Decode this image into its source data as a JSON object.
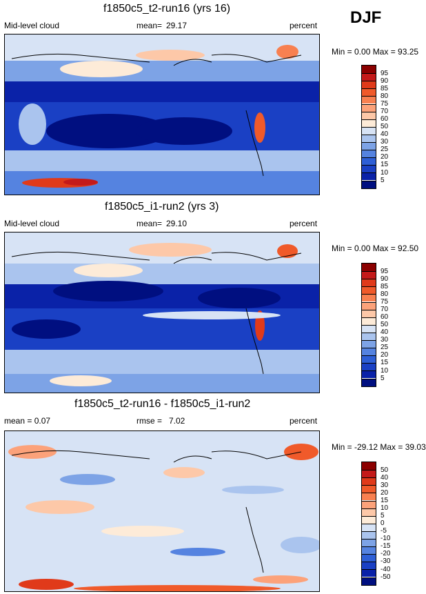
{
  "season": "DJF",
  "panels": [
    {
      "title": "f1850c5_t2-run16 (yrs 16)",
      "left_label": "Mid-level cloud",
      "mid_label": "mean=",
      "mid_value": "29.17",
      "right_label": "percent",
      "minmax": "Min =   0.00 Max =  93.25",
      "levels": [
        "95",
        "90",
        "85",
        "80",
        "75",
        "70",
        "60",
        "50",
        "40",
        "30",
        "25",
        "20",
        "15",
        "10",
        "5"
      ],
      "colors": [
        "#8b0000",
        "#c41a1a",
        "#e03a1a",
        "#f05a2a",
        "#f88050",
        "#fca27a",
        "#fdc8a8",
        "#fdebd8",
        "#d7e3f5",
        "#aac4ee",
        "#7da3e6",
        "#5583e0",
        "#2e5fd6",
        "#1a40c4",
        "#0a22a8",
        "#000f80"
      ]
    },
    {
      "title": "f1850c5_i1-run2 (yrs 3)",
      "left_label": "Mid-level cloud",
      "mid_label": "mean=",
      "mid_value": "29.10",
      "right_label": "percent",
      "minmax": "Min =   0.00 Max =  92.50",
      "levels": [
        "95",
        "90",
        "85",
        "80",
        "75",
        "70",
        "60",
        "50",
        "40",
        "30",
        "25",
        "20",
        "15",
        "10",
        "5"
      ],
      "colors": [
        "#8b0000",
        "#c41a1a",
        "#e03a1a",
        "#f05a2a",
        "#f88050",
        "#fca27a",
        "#fdc8a8",
        "#fdebd8",
        "#d7e3f5",
        "#aac4ee",
        "#7da3e6",
        "#5583e0",
        "#2e5fd6",
        "#1a40c4",
        "#0a22a8",
        "#000f80"
      ]
    },
    {
      "title": "f1850c5_t2-run16 - f1850c5_i1-run2",
      "left_label": "mean =   0.07",
      "mid_label": "rmse =",
      "mid_value": "7.02",
      "right_label": "percent",
      "minmax": "Min = -29.12 Max =  39.03",
      "levels": [
        "50",
        "40",
        "30",
        "20",
        "15",
        "10",
        "5",
        "0",
        "-5",
        "-10",
        "-15",
        "-20",
        "-30",
        "-40",
        "-50"
      ],
      "colors": [
        "#8b0000",
        "#c41a1a",
        "#e03a1a",
        "#f05a2a",
        "#f88050",
        "#fca27a",
        "#fdc8a8",
        "#fdebd8",
        "#d7e3f5",
        "#aac4ee",
        "#7da3e6",
        "#5583e0",
        "#2e5fd6",
        "#1a40c4",
        "#0a22a8",
        "#000f80"
      ]
    }
  ]
}
